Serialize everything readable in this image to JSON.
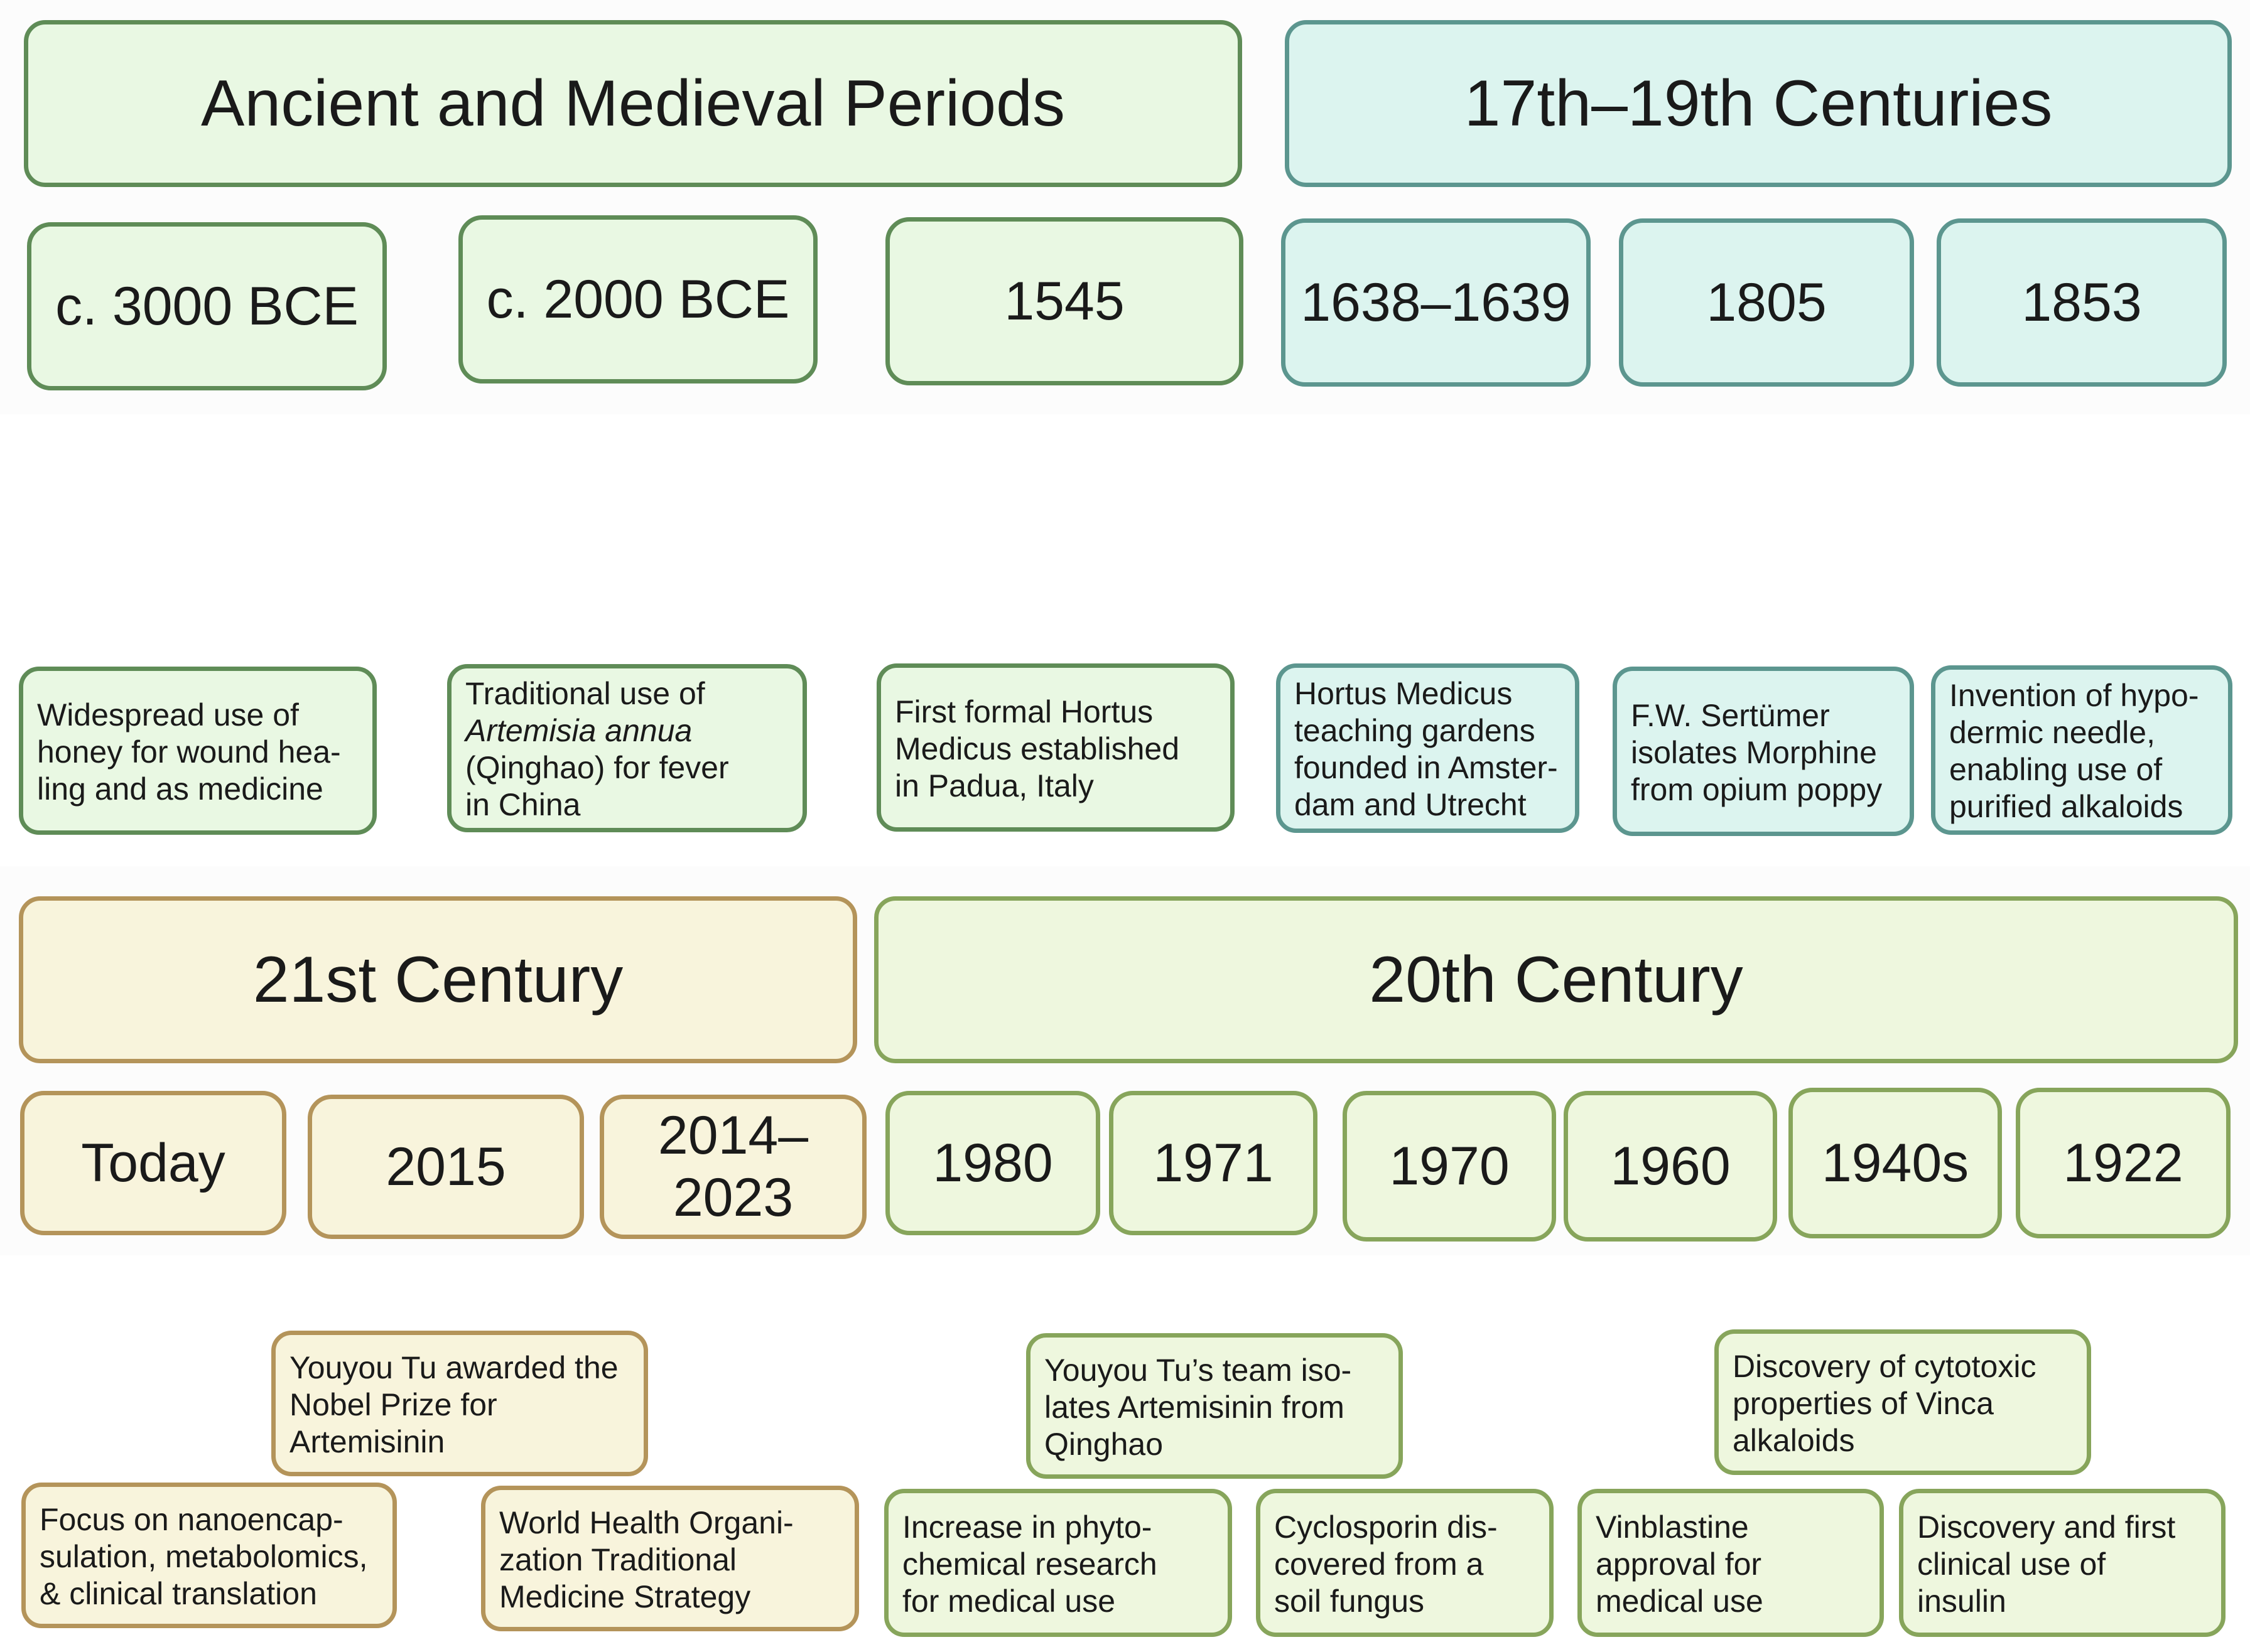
{
  "periods": {
    "ancient": {
      "title": "Ancient and Medieval Periods",
      "years": [
        "c. 3000 BCE",
        "c. 2000 BCE",
        "1545"
      ],
      "events": [
        [
          "Widespread use of",
          "honey for wound hea-",
          "ling and as medicine"
        ],
        [
          "Traditional use of",
          "Artemisia annua",
          "(Qinghao) for fever",
          "in China"
        ],
        [
          "First formal Hortus",
          "Medicus established",
          "in Padua, Italy"
        ]
      ]
    },
    "c17_19": {
      "title": "17th–19th Centuries",
      "years": [
        "1638–1639",
        "1805",
        "1853"
      ],
      "events": [
        [
          "Hortus Medicus",
          "teaching gardens",
          "founded in Amster-",
          "dam and Utrecht"
        ],
        [
          "F.W. Sertümer",
          "isolates Morphine",
          "from opium poppy"
        ],
        [
          "Invention of hypo-",
          "dermic needle,",
          "enabling use of",
          "purified alkaloids"
        ]
      ]
    },
    "c21": {
      "title": "21st Century",
      "years": [
        "Today",
        "2015",
        "2014–2023"
      ],
      "events": [
        [
          "Youyou Tu awarded the",
          "Nobel Prize for",
          "Artemisinin"
        ],
        [
          "Focus on nanoencap-",
          "sulation, metabolomics,",
          "& clinical translation"
        ],
        [
          "World Health Organi-",
          "zation Traditional",
          "Medicine Strategy"
        ]
      ]
    },
    "c20": {
      "title": "20th Century",
      "years": [
        "1980",
        "1971",
        "1970",
        "1960",
        "1940s",
        "1922"
      ],
      "events": [
        [
          "Youyou Tu’s team iso-",
          "lates Artemisinin from",
          "Qinghao"
        ],
        [
          "Increase in phyto-",
          "chemical research",
          "for medical use"
        ],
        [
          "Cyclosporin dis-",
          "covered from a",
          "soil fungus"
        ],
        [
          "Discovery of cytotoxic",
          "properties of Vinca",
          "alkaloids"
        ],
        [
          "Vinblastine",
          "approval for",
          "medical use"
        ],
        [
          "Discovery and first",
          "clinical use of",
          "insulin"
        ]
      ]
    }
  }
}
